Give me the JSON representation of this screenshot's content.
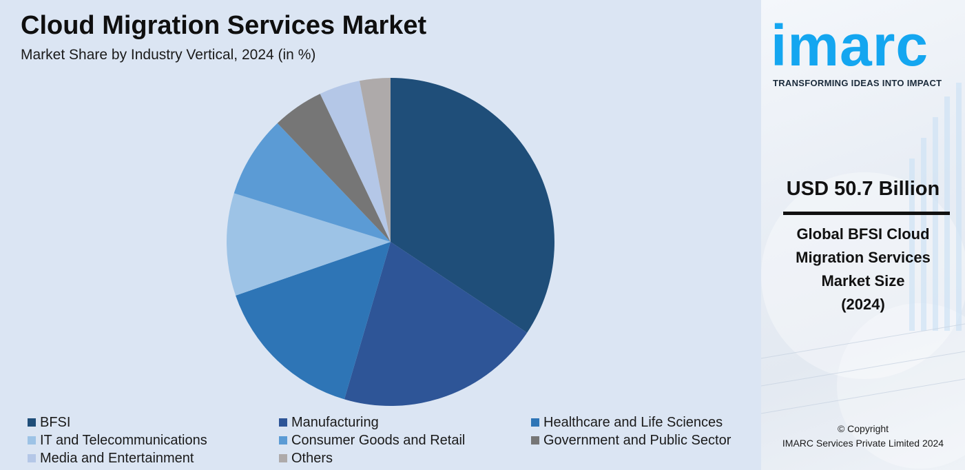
{
  "header": {
    "title": "Cloud Migration Services Market",
    "subtitle": "Market Share by Industry Vertical, 2024 (in %)"
  },
  "chart_data": {
    "type": "pie",
    "categories": [
      "BFSI",
      "Manufacturing",
      "Healthcare and Life Sciences",
      "IT and Telecommunications",
      "Consumer Goods and Retail",
      "Government and Public Sector",
      "Media and Entertainment",
      "Others"
    ],
    "values": [
      34,
      20,
      15,
      10,
      8,
      5,
      4,
      3
    ],
    "colors": [
      "#1f4e79",
      "#2e5597",
      "#2e75b6",
      "#9dc3e6",
      "#5b9bd5",
      "#767676",
      "#b4c7e7",
      "#aeaaaa"
    ],
    "start": "12 o'clock, clockwise",
    "legend_position": "bottom"
  },
  "brand": {
    "logo": "imarc",
    "tagline": "TRANSFORMING IDEAS INTO IMPACT",
    "accent": "#14a6f0"
  },
  "highlight": {
    "value": "USD 50.7 Billion",
    "description_lines": [
      "Global BFSI Cloud",
      "Migration Services",
      "Market Size",
      "(2024)"
    ]
  },
  "footer": {
    "copyright_line1": "© Copyright",
    "copyright_line2": "IMARC Services Private Limited 2024"
  }
}
